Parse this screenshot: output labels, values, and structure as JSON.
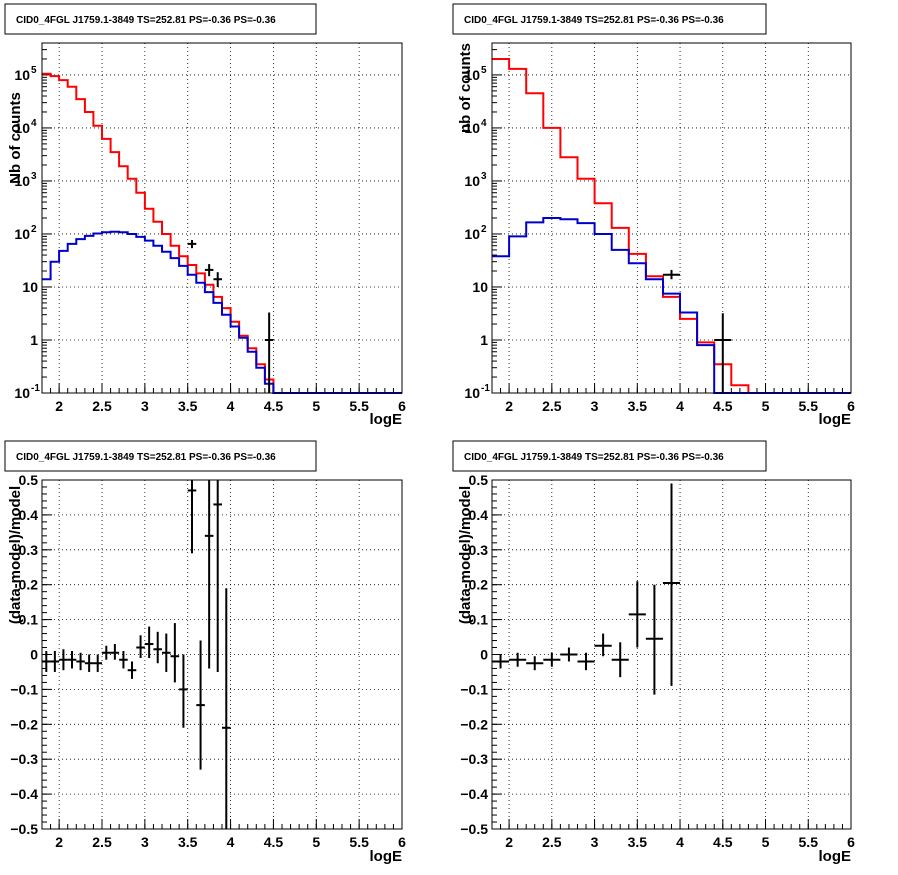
{
  "panels": [
    {
      "id": "top-left",
      "title": "CID0_4FGL J1759.1-3849 TS=252.81 PS=-0.36 PS=-0.36",
      "xlabel": "logE",
      "ylabel": "Nb of counts"
    },
    {
      "id": "top-right",
      "title": "CID0_4FGL J1759.1-3849 TS=252.81 PS=-0.36 PS=-0.36",
      "xlabel": "logE",
      "ylabel": "nb of counts"
    },
    {
      "id": "bottom-left",
      "title": "CID0_4FGL J1759.1-3849 TS=252.81 PS=-0.36 PS=-0.36",
      "xlabel": "logE",
      "ylabel": "(data-model)/model"
    },
    {
      "id": "bottom-right",
      "title": "CID0_4FGL J1759.1-3849 TS=252.81 PS=-0.36 PS=-0.36",
      "xlabel": "logE",
      "ylabel": "(data-model)/model"
    }
  ],
  "chart_data": [
    {
      "panel": "top-left",
      "type": "line",
      "style": "step-histogram",
      "yscale": "log",
      "xlim": [
        1.8,
        6
      ],
      "ylim": [
        0.1,
        400000
      ],
      "grid": true,
      "x_ticks": [
        "2",
        "2.5",
        "3",
        "3.5",
        "4",
        "4.5",
        "5",
        "5.5",
        "6"
      ],
      "y_ticks": [
        {
          "v": 0.1,
          "base": "10",
          "exp": "-1"
        },
        {
          "v": 1,
          "base": "1",
          "exp": ""
        },
        {
          "v": 10,
          "base": "10",
          "exp": ""
        },
        {
          "v": 100,
          "base": "10",
          "exp": "2"
        },
        {
          "v": 1000,
          "base": "10",
          "exp": "3"
        },
        {
          "v": 10000,
          "base": "10",
          "exp": "4"
        },
        {
          "v": 100000,
          "base": "10",
          "exp": "5"
        }
      ],
      "bin_edges": [
        1.8,
        1.9,
        2.0,
        2.1,
        2.2,
        2.3,
        2.4,
        2.5,
        2.6,
        2.7,
        2.8,
        2.9,
        3.0,
        3.1,
        3.2,
        3.3,
        3.4,
        3.5,
        3.6,
        3.7,
        3.8,
        3.9,
        4.0,
        4.1,
        4.2,
        4.3,
        4.4,
        4.5,
        4.6,
        4.7,
        4.8,
        4.9,
        5.0,
        5.1,
        5.2,
        5.3,
        5.4,
        5.5,
        5.6,
        5.7,
        5.8,
        5.9,
        6.0
      ],
      "series": [
        {
          "color": "#ff0000",
          "values": [
            105000,
            95000,
            80000,
            60000,
            35000,
            20000,
            11000,
            6200,
            3500,
            1900,
            1100,
            600,
            300,
            170,
            100,
            60,
            38,
            26,
            18,
            11,
            6.5,
            4,
            2.2,
            1.2,
            0.7,
            0.35,
            0.18,
            0.1,
            0.1,
            0.1,
            0.1,
            0.1,
            0.1,
            0.1,
            0.1,
            0.1,
            0.1,
            0.1,
            0.1,
            0.1,
            0.1,
            0.1
          ]
        },
        {
          "color": "#0000cc",
          "values": [
            14,
            30,
            48,
            65,
            80,
            92,
            102,
            108,
            110,
            108,
            100,
            88,
            75,
            60,
            46,
            35,
            25,
            17,
            12,
            8,
            5,
            3,
            1.8,
            1.1,
            0.6,
            0.3,
            0.15,
            0.1,
            0.1,
            0.1,
            0.1,
            0.1,
            0.1,
            0.1,
            0.1,
            0.1,
            0.1,
            0.1,
            0.1,
            0.1,
            0.1,
            0.1
          ]
        }
      ],
      "data_points": [
        {
          "x": 3.55,
          "y": 65,
          "xerr": 0.05,
          "ylo": 54,
          "yhi": 77
        },
        {
          "x": 3.75,
          "y": 21,
          "xerr": 0.05,
          "ylo": 16,
          "yhi": 27
        },
        {
          "x": 3.85,
          "y": 14,
          "xerr": 0.05,
          "ylo": 10,
          "yhi": 19
        },
        {
          "x": 4.45,
          "y": 1,
          "xerr": 0.05,
          "ylo": 0.1,
          "yhi": 3.3
        }
      ]
    },
    {
      "panel": "top-right",
      "type": "line",
      "style": "step-histogram",
      "yscale": "log",
      "xlim": [
        1.8,
        6
      ],
      "ylim": [
        0.1,
        400000
      ],
      "grid": true,
      "x_ticks": [
        "2",
        "2.5",
        "3",
        "3.5",
        "4",
        "4.5",
        "5",
        "5.5",
        "6"
      ],
      "y_ticks": [
        {
          "v": 0.1,
          "base": "10",
          "exp": "-1"
        },
        {
          "v": 1,
          "base": "1",
          "exp": ""
        },
        {
          "v": 10,
          "base": "10",
          "exp": ""
        },
        {
          "v": 100,
          "base": "10",
          "exp": "2"
        },
        {
          "v": 1000,
          "base": "10",
          "exp": "3"
        },
        {
          "v": 10000,
          "base": "10",
          "exp": "4"
        },
        {
          "v": 100000,
          "base": "10",
          "exp": "5"
        }
      ],
      "bin_edges": [
        1.8,
        2.0,
        2.2,
        2.4,
        2.6,
        2.8,
        3.0,
        3.2,
        3.4,
        3.6,
        3.8,
        4.0,
        4.2,
        4.4,
        4.6,
        4.8,
        5.0,
        5.2,
        5.4,
        5.6,
        5.8,
        6.0
      ],
      "series": [
        {
          "color": "#ff0000",
          "values": [
            200000,
            130000,
            45000,
            10000,
            2800,
            1100,
            380,
            130,
            42,
            16,
            6.5,
            2.5,
            0.9,
            0.35,
            0.14,
            0.1,
            0.1,
            0.1,
            0.1,
            0.1,
            0.1
          ]
        },
        {
          "color": "#0000cc",
          "values": [
            38,
            90,
            165,
            200,
            190,
            160,
            100,
            50,
            28,
            14,
            7.5,
            3.3,
            0.8,
            0.1,
            0.1,
            0.1,
            0.1,
            0.1,
            0.1,
            0.1,
            0.1
          ]
        }
      ],
      "data_points": [
        {
          "x": 3.9,
          "y": 17,
          "xerr": 0.1,
          "ylo": 14,
          "yhi": 21
        },
        {
          "x": 4.5,
          "y": 1,
          "xerr": 0.1,
          "ylo": 0.1,
          "yhi": 3.2
        }
      ]
    },
    {
      "panel": "bottom-left",
      "type": "scatter",
      "style": "error-bars",
      "xlim": [
        1.8,
        6
      ],
      "ylim": [
        -0.5,
        0.5
      ],
      "grid": true,
      "x_ticks": [
        "2",
        "2.5",
        "3",
        "3.5",
        "4",
        "4.5",
        "5",
        "5.5",
        "6"
      ],
      "y_ticks": [
        "-0.5",
        "-0.4",
        "-0.3",
        "-0.2",
        "-0.1",
        "0",
        "0.1",
        "0.2",
        "0.3",
        "0.4",
        "0.5"
      ],
      "points": [
        {
          "x": 1.85,
          "y": -0.02,
          "xerr": 0.05,
          "ylo": -0.05,
          "yhi": 0.01
        },
        {
          "x": 1.95,
          "y": -0.02,
          "xerr": 0.05,
          "ylo": -0.05,
          "yhi": 0.01
        },
        {
          "x": 2.05,
          "y": -0.015,
          "xerr": 0.05,
          "ylo": -0.045,
          "yhi": 0.015
        },
        {
          "x": 2.15,
          "y": -0.015,
          "xerr": 0.05,
          "ylo": -0.04,
          "yhi": 0.01
        },
        {
          "x": 2.25,
          "y": -0.02,
          "xerr": 0.05,
          "ylo": -0.045,
          "yhi": 0.005
        },
        {
          "x": 2.35,
          "y": -0.025,
          "xerr": 0.05,
          "ylo": -0.05,
          "yhi": 0.0
        },
        {
          "x": 2.45,
          "y": -0.025,
          "xerr": 0.05,
          "ylo": -0.05,
          "yhi": 0.0
        },
        {
          "x": 2.55,
          "y": 0.005,
          "xerr": 0.05,
          "ylo": -0.015,
          "yhi": 0.025
        },
        {
          "x": 2.65,
          "y": 0.005,
          "xerr": 0.05,
          "ylo": -0.015,
          "yhi": 0.03
        },
        {
          "x": 2.75,
          "y": -0.015,
          "xerr": 0.05,
          "ylo": -0.04,
          "yhi": 0.01
        },
        {
          "x": 2.85,
          "y": -0.045,
          "xerr": 0.05,
          "ylo": -0.07,
          "yhi": -0.02
        },
        {
          "x": 2.95,
          "y": 0.02,
          "xerr": 0.05,
          "ylo": -0.01,
          "yhi": 0.055
        },
        {
          "x": 3.05,
          "y": 0.03,
          "xerr": 0.05,
          "ylo": -0.01,
          "yhi": 0.08
        },
        {
          "x": 3.15,
          "y": 0.015,
          "xerr": 0.05,
          "ylo": -0.025,
          "yhi": 0.065
        },
        {
          "x": 3.25,
          "y": 0.005,
          "xerr": 0.05,
          "ylo": -0.05,
          "yhi": 0.06
        },
        {
          "x": 3.35,
          "y": -0.005,
          "xerr": 0.05,
          "ylo": -0.08,
          "yhi": 0.09
        },
        {
          "x": 3.45,
          "y": -0.1,
          "xerr": 0.05,
          "ylo": -0.21,
          "yhi": 0.0
        },
        {
          "x": 3.55,
          "y": 0.47,
          "xerr": 0.05,
          "ylo": 0.29,
          "yhi": 0.5
        },
        {
          "x": 3.65,
          "y": -0.145,
          "xerr": 0.05,
          "ylo": -0.33,
          "yhi": 0.04
        },
        {
          "x": 3.75,
          "y": 0.34,
          "xerr": 0.05,
          "ylo": -0.04,
          "yhi": 0.5
        },
        {
          "x": 3.85,
          "y": 0.43,
          "xerr": 0.05,
          "ylo": -0.05,
          "yhi": 0.5
        },
        {
          "x": 3.95,
          "y": -0.21,
          "xerr": 0.05,
          "ylo": -0.5,
          "yhi": 0.19
        }
      ]
    },
    {
      "panel": "bottom-right",
      "type": "scatter",
      "style": "error-bars",
      "xlim": [
        1.8,
        6
      ],
      "ylim": [
        -0.5,
        0.5
      ],
      "grid": true,
      "x_ticks": [
        "2",
        "2.5",
        "3",
        "3.5",
        "4",
        "4.5",
        "5",
        "5.5",
        "6"
      ],
      "y_ticks": [
        "-0.5",
        "-0.4",
        "-0.3",
        "-0.2",
        "-0.1",
        "0",
        "0.1",
        "0.2",
        "0.3",
        "0.4",
        "0.5"
      ],
      "points": [
        {
          "x": 1.9,
          "y": -0.02,
          "xerr": 0.1,
          "ylo": -0.04,
          "yhi": 0.0
        },
        {
          "x": 2.1,
          "y": -0.015,
          "xerr": 0.1,
          "ylo": -0.035,
          "yhi": 0.005
        },
        {
          "x": 2.3,
          "y": -0.025,
          "xerr": 0.1,
          "ylo": -0.045,
          "yhi": -0.005
        },
        {
          "x": 2.5,
          "y": -0.015,
          "xerr": 0.1,
          "ylo": -0.035,
          "yhi": 0.005
        },
        {
          "x": 2.7,
          "y": 0.0,
          "xerr": 0.1,
          "ylo": -0.02,
          "yhi": 0.02
        },
        {
          "x": 2.9,
          "y": -0.02,
          "xerr": 0.1,
          "ylo": -0.045,
          "yhi": 0.005
        },
        {
          "x": 3.1,
          "y": 0.025,
          "xerr": 0.1,
          "ylo": -0.005,
          "yhi": 0.06
        },
        {
          "x": 3.3,
          "y": -0.015,
          "xerr": 0.1,
          "ylo": -0.065,
          "yhi": 0.035
        },
        {
          "x": 3.5,
          "y": 0.115,
          "xerr": 0.1,
          "ylo": 0.02,
          "yhi": 0.21
        },
        {
          "x": 3.7,
          "y": 0.045,
          "xerr": 0.1,
          "ylo": -0.115,
          "yhi": 0.2
        },
        {
          "x": 3.9,
          "y": 0.205,
          "xerr": 0.1,
          "ylo": -0.09,
          "yhi": 0.49
        }
      ]
    }
  ]
}
